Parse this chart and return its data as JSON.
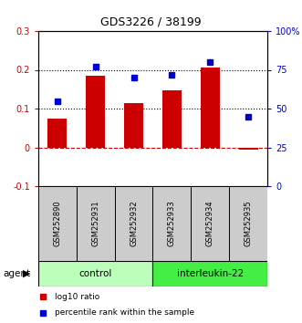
{
  "title": "GDS3226 / 38199",
  "samples": [
    "GSM252890",
    "GSM252931",
    "GSM252932",
    "GSM252933",
    "GSM252934",
    "GSM252935"
  ],
  "bar_values": [
    0.075,
    0.185,
    0.115,
    0.148,
    0.205,
    -0.005
  ],
  "dot_values": [
    55,
    77,
    70,
    72,
    80,
    45
  ],
  "bar_color": "#cc0000",
  "dot_color": "#0000cc",
  "ylim_left": [
    -0.1,
    0.3
  ],
  "ylim_right": [
    0,
    100
  ],
  "hlines": [
    0.1,
    0.2
  ],
  "zero_line_color": "#cc0000",
  "hline_color": "#000000",
  "control_color": "#bbffbb",
  "interleukin_color": "#44ee44",
  "sample_box_color": "#cccccc",
  "agent_label": "agent",
  "control_label": "control",
  "interleukin_label": "interleukin-22",
  "legend_bar_label": "log10 ratio",
  "legend_dot_label": "percentile rank within the sample",
  "bar_width": 0.5
}
